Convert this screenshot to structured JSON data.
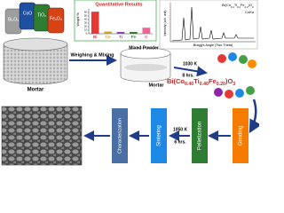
{
  "reagents": [
    "Bi₂O₃",
    "CoO",
    "TiO₂",
    "Fe₂O₃"
  ],
  "mortar_label": "Mortar",
  "step_weighing": "Weighing & Mixing",
  "mixed_powder": "Mixed Powder",
  "mixed_mortar_label": "Mortar",
  "calcination": {
    "temperature": "1030 K",
    "time": "8 hrs."
  },
  "product_formula": [
    "Bi(Co",
    "0.40",
    "Ti",
    "0.40",
    "Fe",
    "0.20",
    ")O",
    "3"
  ],
  "steps": {
    "grinding": "Grinding",
    "pelletization": "Pelletization",
    "sintering": "Sintering",
    "characterization": "Characterization"
  },
  "sintering_conditions": {
    "temperature": "1050 K",
    "time": "6 hrs."
  },
  "edx_chart": {
    "title": "Quantitative Results",
    "y_label": "Weight %",
    "categories": [
      "Bi",
      "Co",
      "Ti",
      "Fe",
      "O"
    ],
    "values": [
      62,
      6,
      5,
      5,
      17
    ],
    "colors": [
      "#e53935",
      "#d4a017",
      "#8e44ad",
      "#2e7d32",
      "#f06292"
    ],
    "ylim": [
      0,
      70
    ],
    "yticks": [
      0,
      10,
      20,
      30,
      40,
      50,
      60
    ]
  },
  "xrd_chart": {
    "y_label": "Intensity (arb. unit)",
    "x_label": "Bragg's Angle (Two Theta)",
    "sample": [
      "Bi(Co",
      "0.4",
      "Ti",
      "0.4",
      "Fe",
      "0.2",
      ")O",
      "3"
    ],
    "source": "CuKα"
  }
}
